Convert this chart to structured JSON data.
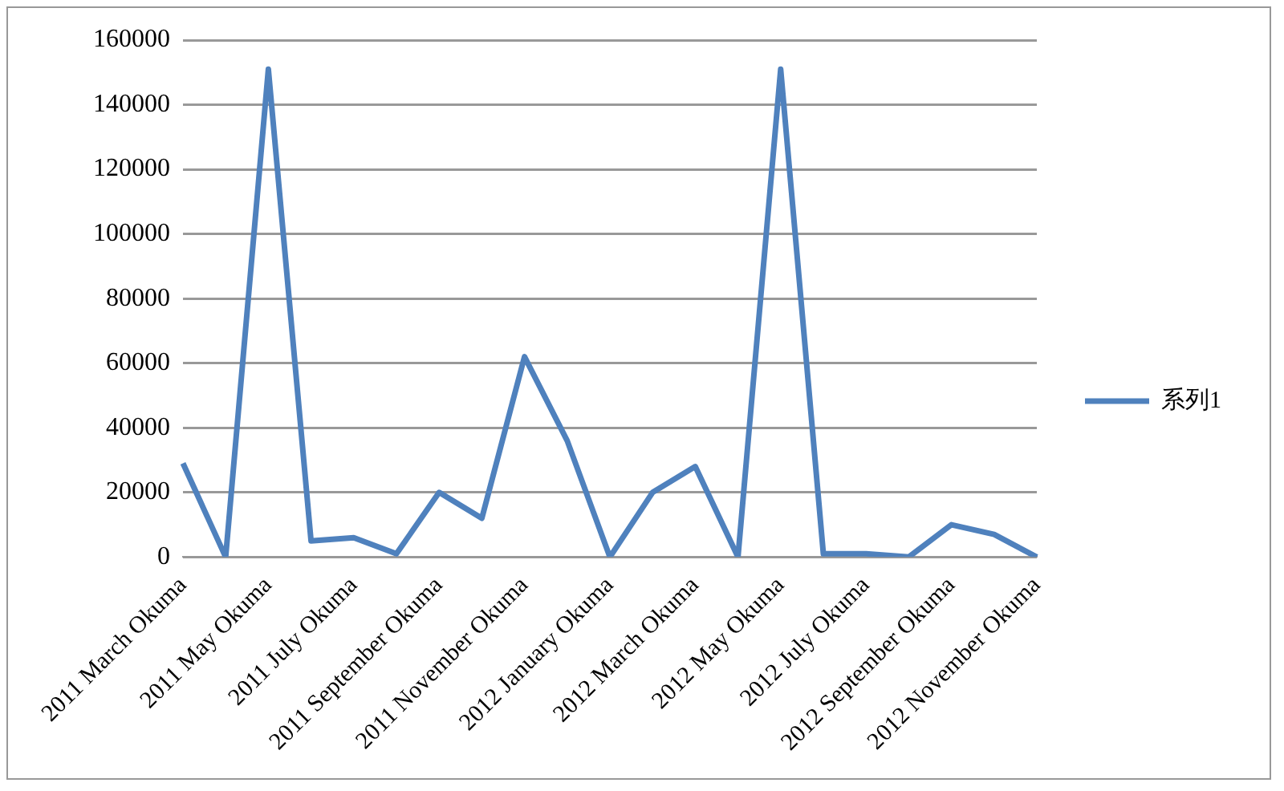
{
  "chart_data": {
    "type": "line",
    "categories": [
      "2011 March Okuma",
      null,
      "2011 May Okuma",
      null,
      "2011 July Okuma",
      null,
      "2011 September Okuma",
      null,
      "2011 November Okuma",
      null,
      "2012 January Okuma",
      null,
      "2012 March Okuma",
      null,
      "2012 May Okuma",
      null,
      "2012 July Okuma",
      null,
      "2012 September Okuma",
      null,
      "2012 November Okuma"
    ],
    "series": [
      {
        "name": "系列1",
        "color": "#4f81bd",
        "values": [
          29000,
          0,
          151000,
          5000,
          6000,
          1000,
          20000,
          12000,
          62000,
          36000,
          0,
          20000,
          28000,
          0,
          151000,
          1000,
          1000,
          0,
          10000,
          7000,
          0
        ]
      }
    ],
    "ylim": [
      0,
      160000
    ],
    "yticks": [
      0,
      20000,
      40000,
      60000,
      80000,
      100000,
      120000,
      140000,
      160000
    ],
    "grid": "y",
    "legend": "right",
    "marker": "none"
  }
}
